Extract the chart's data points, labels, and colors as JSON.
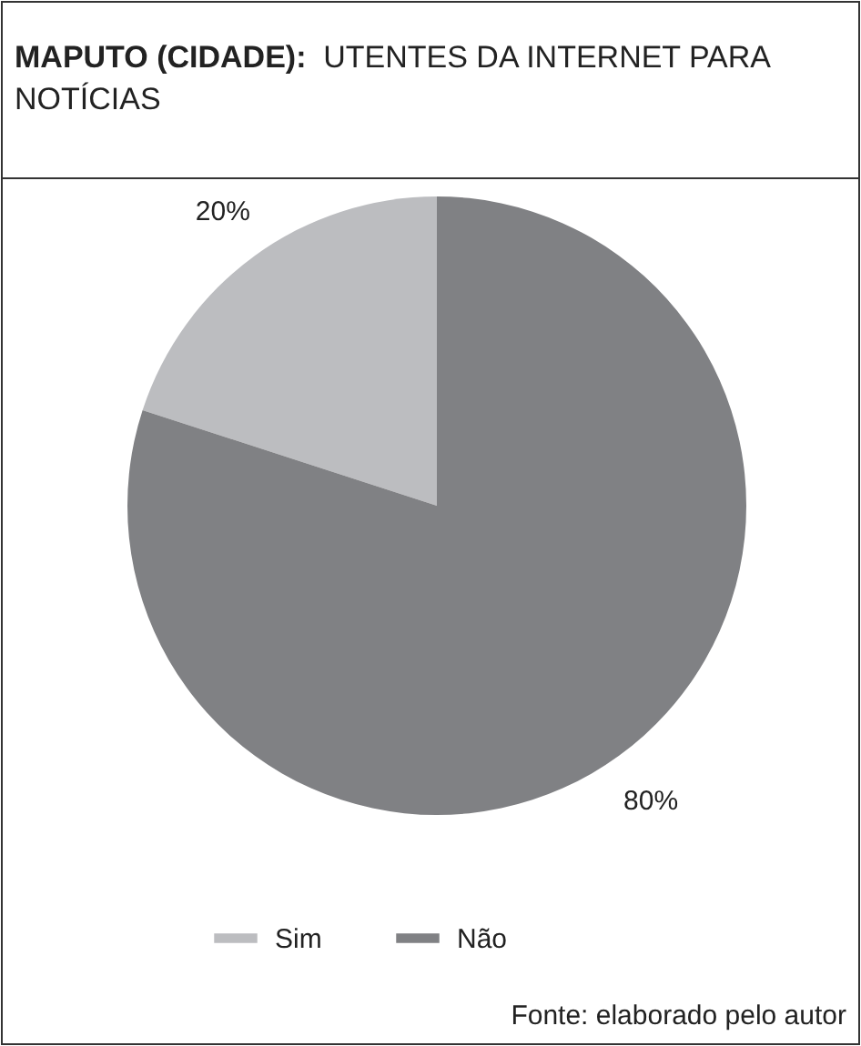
{
  "chart_data": {
    "type": "pie",
    "title": "MAPUTO (CIDADE): UTENTES DA INTERNET PARA NOTÍCIAS",
    "categories": [
      "Sim",
      "Não"
    ],
    "values": [
      20,
      80
    ],
    "colors": [
      "#bcbdc0",
      "#808184"
    ],
    "value_labels": [
      "20%",
      "80%"
    ],
    "legend": "bottom",
    "annotations": [
      "Fonte: elaborado pelo autor"
    ]
  }
}
